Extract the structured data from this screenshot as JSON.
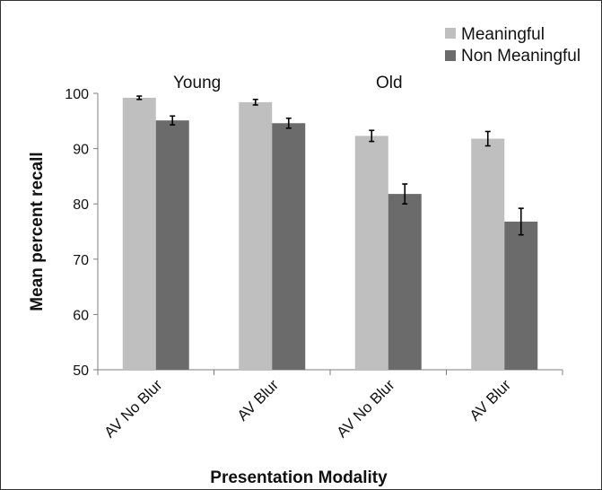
{
  "chart_data": {
    "type": "bar",
    "title": "",
    "xlabel": "Presentation Modality",
    "ylabel": "Mean percent recall",
    "ylim": [
      50,
      100
    ],
    "yticks": [
      "50",
      "60",
      "70",
      "80",
      "90",
      "100"
    ],
    "categories": [
      "AV No Blur",
      "AV Blur",
      "AV No Blur",
      "AV Blur"
    ],
    "group_labels": [
      "Young",
      "Old"
    ],
    "series": [
      {
        "name": "Meaningful",
        "color": "#bfbfbf",
        "values": [
          99.2,
          98.4,
          92.3,
          91.8
        ],
        "errors": [
          0.3,
          0.5,
          1.0,
          1.3
        ]
      },
      {
        "name": "Non Meaningful",
        "color": "#6b6b6b",
        "values": [
          95.1,
          94.6,
          81.8,
          76.8
        ],
        "errors": [
          0.8,
          0.9,
          1.8,
          2.4
        ]
      }
    ],
    "grid": false,
    "legend_position": "top-right"
  }
}
